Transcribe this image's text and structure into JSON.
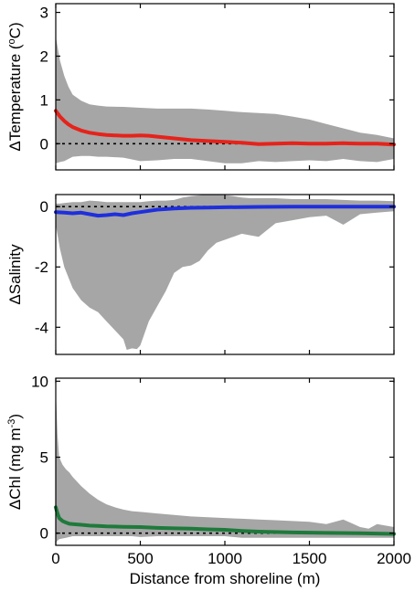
{
  "chart_data": [
    {
      "type": "area",
      "ylabel": "ΔTemperature (°C)",
      "ylabel_parts": {
        "prefix": "ΔTemperature (",
        "superscript": "o",
        "suffix": "C)"
      },
      "xlabel": "",
      "xlim": [
        0,
        2000
      ],
      "ylim": [
        -0.6,
        3.2
      ],
      "yticks": [
        0,
        1,
        2,
        3
      ],
      "xticks": [
        0,
        500,
        1000,
        1500,
        2000
      ],
      "show_xtick_labels": false,
      "zero_line": 0,
      "series": [
        {
          "role": "mean",
          "color": "#e5231b",
          "x": [
            0,
            25,
            50,
            75,
            100,
            150,
            200,
            250,
            300,
            350,
            400,
            450,
            500,
            550,
            600,
            700,
            800,
            900,
            1000,
            1100,
            1200,
            1300,
            1400,
            1500,
            1600,
            1700,
            1800,
            1900,
            2000
          ],
          "y": [
            0.75,
            0.62,
            0.52,
            0.44,
            0.38,
            0.3,
            0.25,
            0.22,
            0.2,
            0.19,
            0.18,
            0.18,
            0.19,
            0.18,
            0.16,
            0.12,
            0.08,
            0.06,
            0.04,
            0.02,
            -0.01,
            0.0,
            0.01,
            0.0,
            0.0,
            0.01,
            0.0,
            0.0,
            -0.02
          ]
        },
        {
          "role": "range",
          "color": "#a6a6a6",
          "x": [
            0,
            25,
            50,
            75,
            100,
            150,
            200,
            250,
            300,
            400,
            500,
            600,
            700,
            800,
            900,
            1000,
            1100,
            1200,
            1300,
            1400,
            1500,
            1600,
            1700,
            1800,
            1900,
            2000
          ],
          "upper": [
            2.45,
            1.9,
            1.55,
            1.3,
            1.12,
            0.98,
            0.9,
            0.87,
            0.85,
            0.84,
            0.82,
            0.8,
            0.8,
            0.8,
            0.78,
            0.75,
            0.72,
            0.7,
            0.68,
            0.62,
            0.55,
            0.45,
            0.35,
            0.25,
            0.2,
            0.12
          ],
          "lower": [
            -0.45,
            -0.42,
            -0.4,
            -0.35,
            -0.3,
            -0.28,
            -0.28,
            -0.3,
            -0.3,
            -0.32,
            -0.4,
            -0.38,
            -0.35,
            -0.35,
            -0.4,
            -0.45,
            -0.45,
            -0.4,
            -0.42,
            -0.4,
            -0.38,
            -0.4,
            -0.35,
            -0.4,
            -0.42,
            -0.35
          ]
        }
      ]
    },
    {
      "type": "area",
      "ylabel": "ΔSalinity",
      "xlabel": "",
      "xlim": [
        0,
        2000
      ],
      "ylim": [
        -4.9,
        0.4
      ],
      "yticks": [
        -4,
        -2,
        0
      ],
      "xticks": [
        0,
        500,
        1000,
        1500,
        2000
      ],
      "show_xtick_labels": false,
      "zero_line": 0,
      "series": [
        {
          "role": "mean",
          "color": "#1f2fdc",
          "x": [
            0,
            50,
            100,
            150,
            200,
            250,
            300,
            350,
            400,
            450,
            500,
            600,
            700,
            800,
            900,
            1000,
            1200,
            1400,
            1600,
            1800,
            2000
          ],
          "y": [
            -0.18,
            -0.2,
            -0.22,
            -0.2,
            -0.25,
            -0.3,
            -0.28,
            -0.25,
            -0.28,
            -0.22,
            -0.18,
            -0.1,
            -0.06,
            -0.04,
            -0.03,
            -0.02,
            -0.01,
            0.0,
            0.0,
            0.0,
            0.0
          ],
          "ylim": null
        },
        {
          "role": "range",
          "color": "#a6a6a6",
          "x": [
            0,
            25,
            50,
            100,
            150,
            200,
            250,
            300,
            350,
            400,
            420,
            450,
            480,
            500,
            550,
            600,
            650,
            700,
            750,
            800,
            850,
            900,
            950,
            1000,
            1050,
            1100,
            1150,
            1200,
            1300,
            1400,
            1500,
            1600,
            1700,
            1800,
            1900,
            2000
          ],
          "upper": [
            0.1,
            0.1,
            0.12,
            0.15,
            0.15,
            0.2,
            0.18,
            0.15,
            0.15,
            0.15,
            0.15,
            0.15,
            0.15,
            0.15,
            0.18,
            0.2,
            0.2,
            0.22,
            0.3,
            0.35,
            0.38,
            0.4,
            0.4,
            0.38,
            0.35,
            0.3,
            0.28,
            0.28,
            0.28,
            0.25,
            0.25,
            0.25,
            0.22,
            0.2,
            0.2,
            0.18
          ],
          "lower": [
            -0.6,
            -1.4,
            -2.0,
            -2.7,
            -3.1,
            -3.35,
            -3.5,
            -3.8,
            -4.1,
            -4.4,
            -4.75,
            -4.7,
            -4.72,
            -4.6,
            -3.8,
            -3.3,
            -2.8,
            -2.2,
            -2.0,
            -1.95,
            -1.8,
            -1.45,
            -1.2,
            -1.1,
            -1.0,
            -0.9,
            -0.95,
            -1.0,
            -0.55,
            -0.45,
            -0.35,
            -0.3,
            -0.6,
            -0.25,
            -0.2,
            -0.15
          ]
        }
      ]
    },
    {
      "type": "area",
      "ylabel": "ΔChl (mg m⁻³)",
      "ylabel_parts": {
        "prefix": "ΔChl (mg m",
        "superscript": "-3",
        "suffix": ")"
      },
      "xlabel": "Distance from shoreline (m)",
      "xlim": [
        0,
        2000
      ],
      "ylim": [
        -0.8,
        10.2
      ],
      "yticks": [
        0,
        5,
        10
      ],
      "xticks": [
        0,
        500,
        1000,
        1500,
        2000
      ],
      "show_xtick_labels": true,
      "zero_line": 0,
      "series": [
        {
          "role": "mean",
          "color": "#1e7a3b",
          "x": [
            0,
            10,
            20,
            40,
            60,
            80,
            100,
            150,
            200,
            250,
            300,
            400,
            500,
            600,
            700,
            800,
            900,
            1000,
            1100,
            1200,
            1400,
            1600,
            1800,
            2000
          ],
          "y": [
            1.7,
            1.3,
            1.0,
            0.8,
            0.7,
            0.62,
            0.6,
            0.55,
            0.5,
            0.48,
            0.45,
            0.42,
            0.4,
            0.35,
            0.32,
            0.3,
            0.25,
            0.22,
            0.15,
            0.1,
            0.05,
            0.02,
            0.0,
            -0.05
          ]
        },
        {
          "role": "range",
          "color": "#a6a6a6",
          "x": [
            0,
            10,
            20,
            40,
            60,
            80,
            100,
            150,
            200,
            250,
            300,
            350,
            400,
            450,
            500,
            600,
            700,
            800,
            900,
            1000,
            1100,
            1200,
            1300,
            1400,
            1500,
            1600,
            1700,
            1800,
            1850,
            1900,
            2000
          ],
          "upper": [
            9.5,
            6.5,
            5.0,
            4.5,
            4.2,
            4.0,
            3.7,
            3.1,
            2.6,
            2.2,
            1.9,
            1.7,
            1.55,
            1.45,
            1.4,
            1.3,
            1.2,
            1.1,
            1.05,
            1.0,
            0.95,
            0.9,
            0.85,
            0.8,
            0.75,
            0.6,
            0.9,
            0.4,
            0.3,
            0.6,
            0.4
          ],
          "lower": [
            -0.6,
            -0.5,
            -0.4,
            -0.35,
            -0.3,
            -0.25,
            -0.2,
            -0.2,
            -0.2,
            -0.2,
            -0.2,
            -0.2,
            -0.2,
            -0.2,
            -0.25,
            -0.2,
            -0.2,
            -0.2,
            -0.2,
            -0.2,
            -0.3,
            -0.3,
            -0.3,
            -0.3,
            -0.3,
            -0.3,
            -0.3,
            -0.3,
            -0.3,
            -0.3,
            -0.3
          ]
        }
      ]
    }
  ]
}
